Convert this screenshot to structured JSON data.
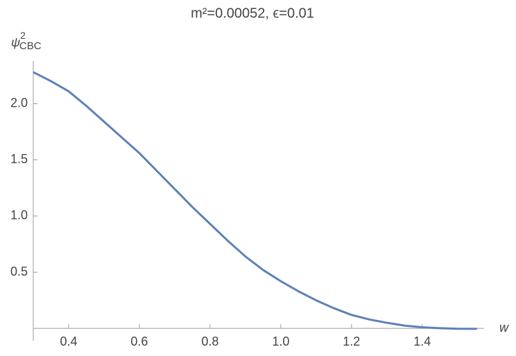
{
  "chart_data": {
    "type": "line",
    "title": "m²=0.00052,  ϵ=0.01",
    "xlabel": "w",
    "ylabel": {
      "symbol": "ψ",
      "sup": "2",
      "sub": "CBC"
    },
    "x": [
      0.3,
      0.35,
      0.4,
      0.45,
      0.5,
      0.55,
      0.6,
      0.65,
      0.7,
      0.75,
      0.8,
      0.85,
      0.9,
      0.95,
      1.0,
      1.05,
      1.1,
      1.15,
      1.2,
      1.25,
      1.3,
      1.35,
      1.4,
      1.45,
      1.5,
      1.555
    ],
    "series": [
      {
        "color": "#5e81b5",
        "values": [
          2.28,
          2.2,
          2.11,
          1.98,
          1.84,
          1.7,
          1.56,
          1.4,
          1.24,
          1.08,
          0.93,
          0.78,
          0.64,
          0.52,
          0.42,
          0.33,
          0.25,
          0.18,
          0.12,
          0.08,
          0.05,
          0.025,
          0.01,
          0.002,
          -0.003,
          -0.004
        ]
      }
    ],
    "xlim": [
      0.3,
      1.575
    ],
    "ylim": [
      -0.11,
      2.38
    ],
    "xticks": [
      0.4,
      0.6,
      0.8,
      {
        "value": 1,
        "label": "1.0"
      },
      1.2,
      1.4
    ],
    "yticks": [
      0.5,
      {
        "value": 1,
        "label": "1.0"
      },
      1.5,
      {
        "value": 2,
        "label": "2.0"
      }
    ],
    "grid": false
  }
}
